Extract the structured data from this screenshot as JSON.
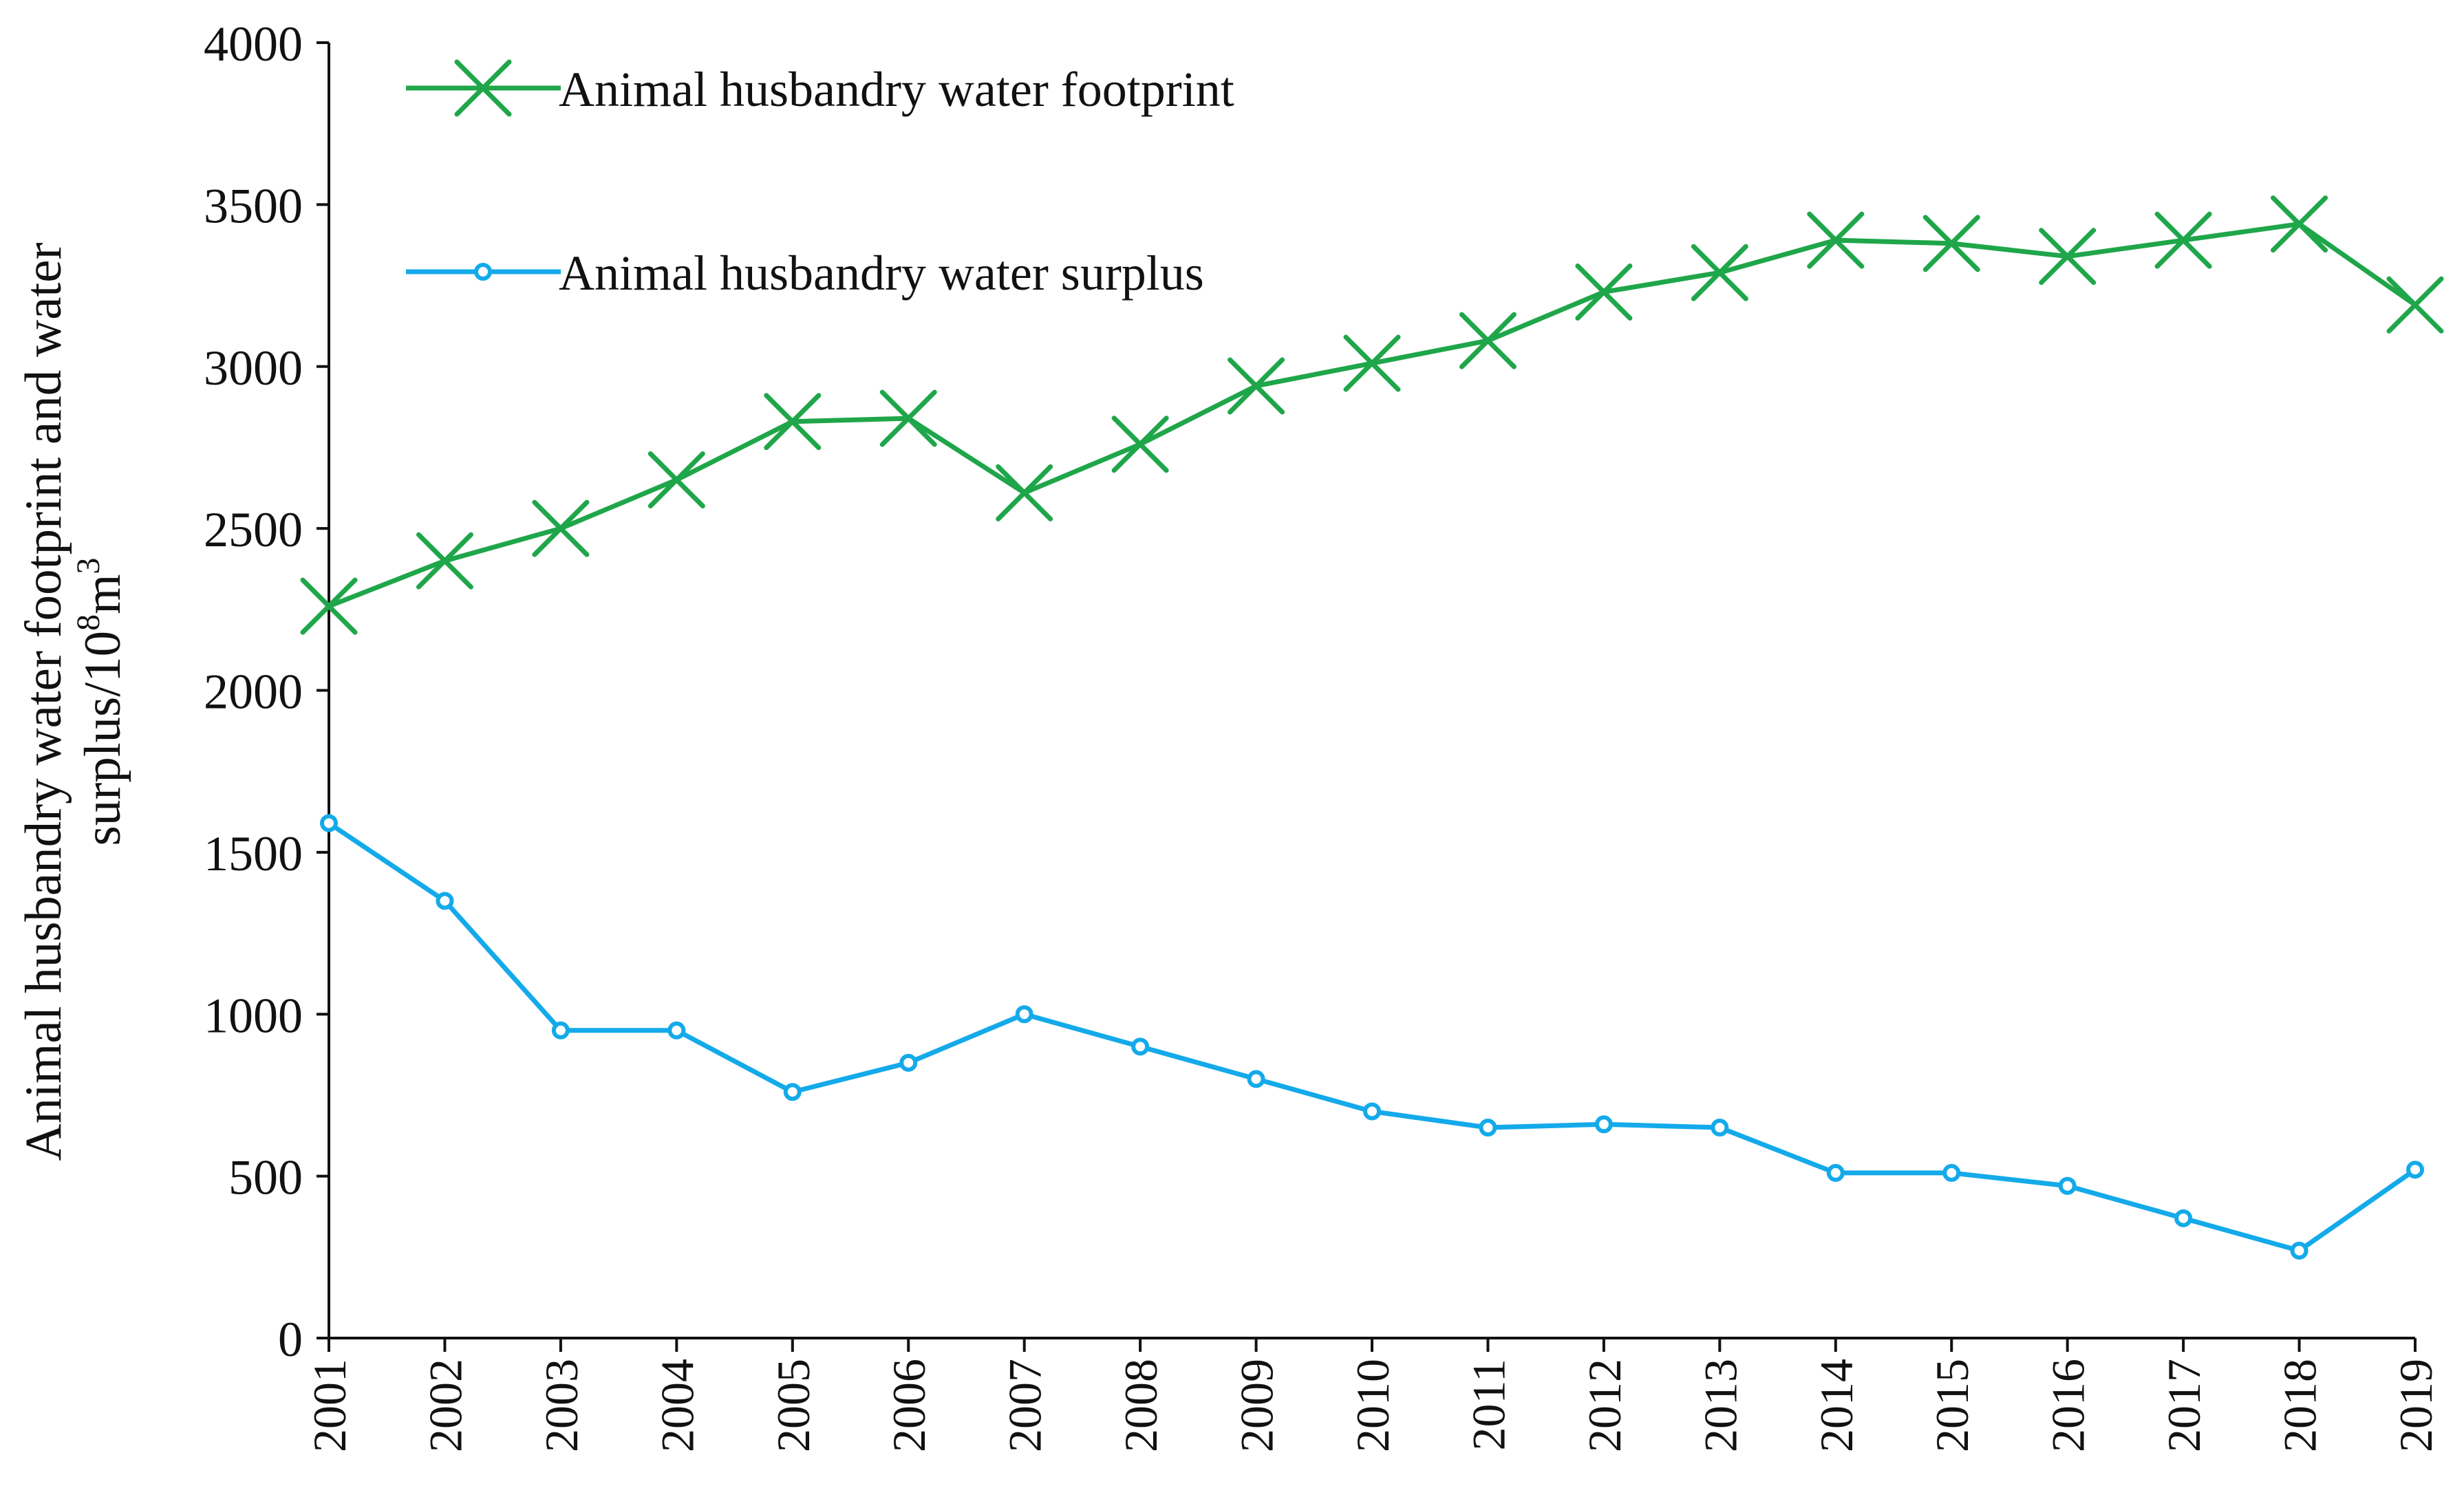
{
  "chart_data": {
    "type": "line",
    "title": "",
    "xlabel": "",
    "ylabel_line1": "Animal husbandry water footprint and water",
    "ylabel_line2_main": "surplus/10",
    "ylabel_line2_sup1": "8",
    "ylabel_line2_mid": "m",
    "ylabel_line2_sup2": "3",
    "ylim": [
      0,
      4000
    ],
    "yticks": [
      0,
      500,
      1000,
      1500,
      2000,
      2500,
      3000,
      3500,
      4000
    ],
    "ytick_labels": [
      "0",
      "500",
      "1000",
      "1500",
      "2000",
      "2500",
      "3000",
      "3500",
      "4000"
    ],
    "grid": false,
    "legend_position": "top-left",
    "categories": [
      "2001",
      "2002",
      "2003",
      "2004",
      "2005",
      "2006",
      "2007",
      "2008",
      "2009",
      "2010",
      "2011",
      "2012",
      "2013",
      "2014",
      "2015",
      "2016",
      "2017",
      "2018",
      "2019"
    ],
    "series": [
      {
        "name": "Animal husbandry water footprint",
        "color": "#1fa64a",
        "marker": "x",
        "values": [
          2260,
          2400,
          2500,
          2650,
          2830,
          2840,
          2610,
          2760,
          2940,
          3010,
          3080,
          3230,
          3290,
          3390,
          3380,
          3340,
          3390,
          3440,
          3190
        ]
      },
      {
        "name": "Animal husbandry water surplus",
        "color": "#14aaea",
        "marker": "circle",
        "values": [
          1590,
          1350,
          950,
          950,
          760,
          850,
          1000,
          900,
          800,
          700,
          650,
          660,
          650,
          510,
          510,
          470,
          370,
          270,
          520
        ]
      }
    ]
  }
}
